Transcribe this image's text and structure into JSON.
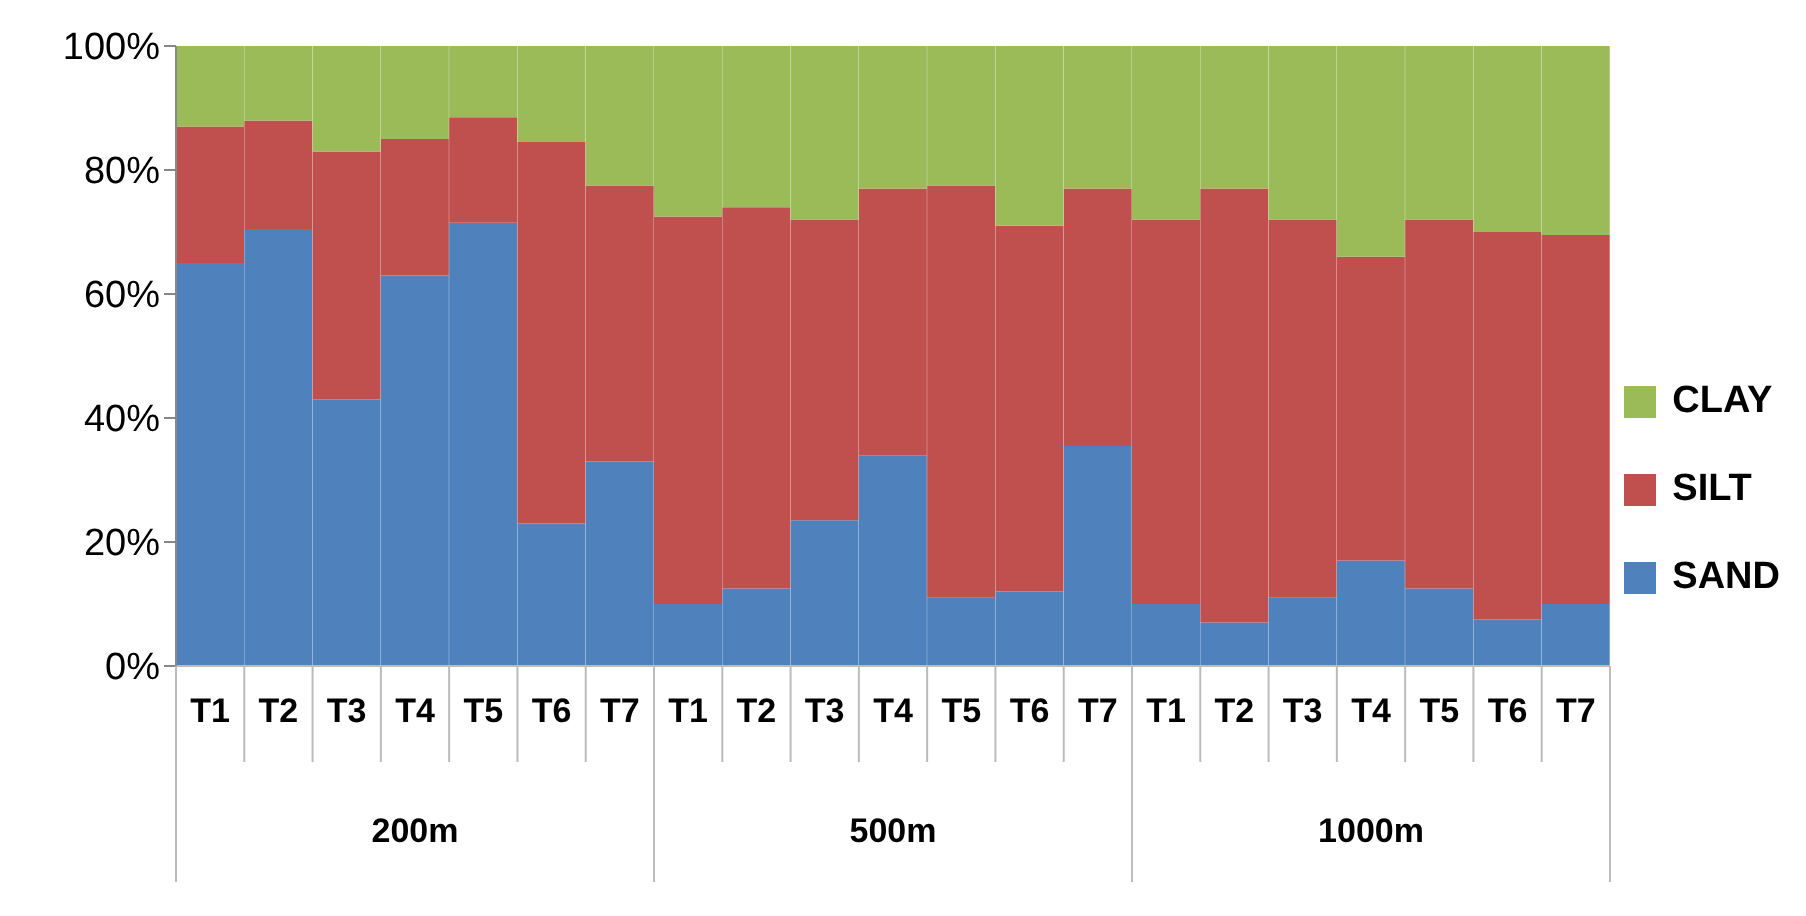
{
  "chart_data": {
    "type": "bar",
    "stacked": true,
    "categories": [
      "T1",
      "T2",
      "T3",
      "T4",
      "T5",
      "T6",
      "T7",
      "T1",
      "T2",
      "T3",
      "T4",
      "T5",
      "T6",
      "T7",
      "T1",
      "T2",
      "T3",
      "T4",
      "T5",
      "T6",
      "T7"
    ],
    "series": [
      {
        "name": "SAND",
        "color": "#4f81bd",
        "values": [
          65,
          70.5,
          43,
          63,
          71.5,
          23,
          33,
          10,
          12.5,
          23.5,
          34,
          11,
          12,
          35.5,
          10,
          7,
          11,
          17,
          12.5,
          7.5,
          10
        ]
      },
      {
        "name": "SILT",
        "color": "#c0504d",
        "values": [
          22,
          17.5,
          40,
          22,
          17,
          61.5,
          44.5,
          62.5,
          61.5,
          48.5,
          43,
          66.5,
          59,
          41.5,
          62,
          70,
          61,
          49,
          59.5,
          62.5,
          59.5
        ]
      },
      {
        "name": "CLAY",
        "color": "#9bbb59",
        "values": [
          13,
          12,
          17,
          15,
          11.5,
          15.5,
          22.5,
          27.5,
          26,
          28,
          23,
          22.5,
          29,
          23,
          28,
          23,
          28,
          34,
          28,
          30,
          30.5
        ]
      }
    ],
    "annotations": [
      "200m",
      "500m",
      "1000m"
    ],
    "ylim": [
      0,
      100
    ],
    "yticks": [
      {
        "value": 0,
        "label": "0%"
      },
      {
        "value": 20,
        "label": "20%"
      },
      {
        "value": 40,
        "label": "40%"
      },
      {
        "value": 60,
        "label": "60%"
      },
      {
        "value": 80,
        "label": "80%"
      },
      {
        "value": 100,
        "label": "100%"
      }
    ],
    "grid": false,
    "legend": "right"
  }
}
